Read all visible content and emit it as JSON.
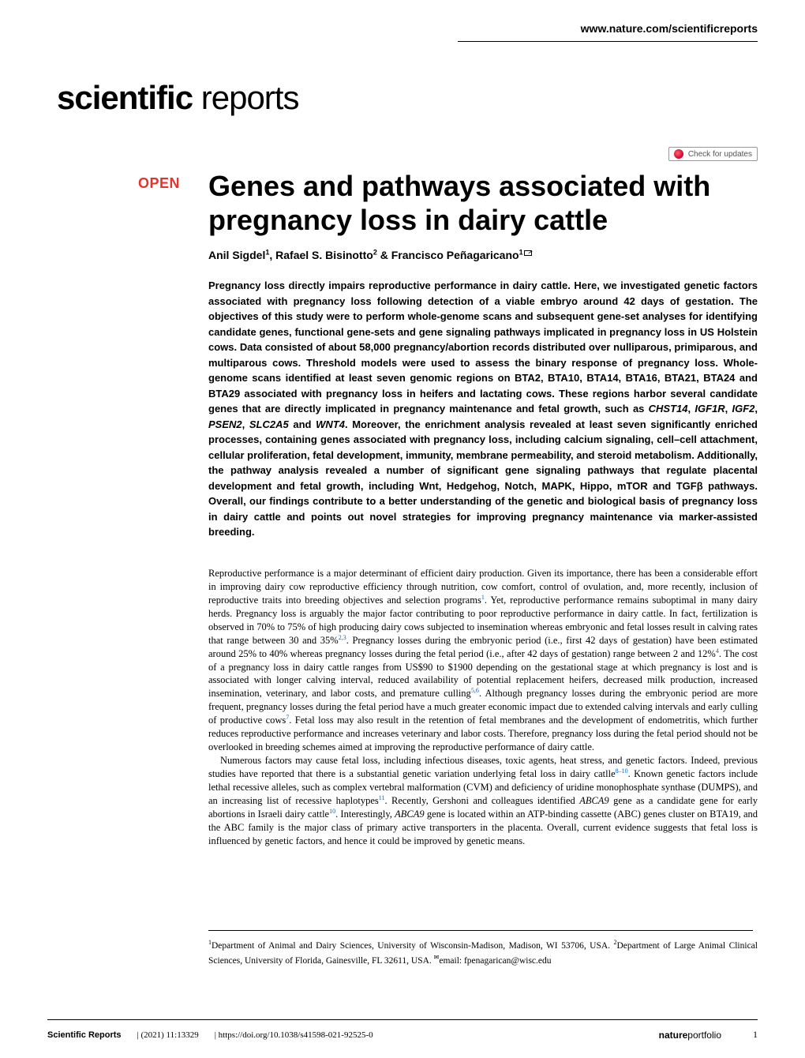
{
  "header": {
    "url": "www.nature.com/scientificreports"
  },
  "journal": {
    "logo_bold": "scientific",
    "logo_light": " reports"
  },
  "check_updates_label": "Check for updates",
  "open_badge": "OPEN",
  "article": {
    "title": "Genes and pathways associated with pregnancy loss in dairy cattle",
    "authors_html": "Anil Sigdel<sup>1</sup>, Rafael S. Bisinotto<sup>2</sup> & Francisco Peñagaricano<sup>1</sup>",
    "abstract": "Pregnancy loss directly impairs reproductive performance in dairy cattle. Here, we investigated genetic factors associated with pregnancy loss following detection of a viable embryo around 42 days of gestation. The objectives of this study were to perform whole-genome scans and subsequent gene-set analyses for identifying candidate genes, functional gene-sets and gene signaling pathways implicated in pregnancy loss in US Holstein cows. Data consisted of about 58,000 pregnancy/abortion records distributed over nulliparous, primiparous, and multiparous cows. Threshold models were used to assess the binary response of pregnancy loss. Whole-genome scans identified at least seven genomic regions on BTA2, BTA10, BTA14, BTA16, BTA21, BTA24 and BTA29 associated with pregnancy loss in heifers and lactating cows. These regions harbor several candidate genes that are directly implicated in pregnancy maintenance and fetal growth, such as <span class=\"gene\">CHST14</span>, <span class=\"gene\">IGF1R</span>, <span class=\"gene\">IGF2</span>, <span class=\"gene\">PSEN2</span>, <span class=\"gene\">SLC2A5</span> and <span class=\"gene\">WNT4</span>. Moreover, the enrichment analysis revealed at least seven significantly enriched processes, containing genes associated with pregnancy loss, including calcium signaling, cell–cell attachment, cellular proliferation, fetal development, immunity, membrane permeability, and steroid metabolism. Additionally, the pathway analysis revealed a number of significant gene signaling pathways that regulate placental development and fetal growth, including Wnt, Hedgehog, Notch, MAPK, Hippo, mTOR and TGFβ pathways. Overall, our findings contribute to a better understanding of the genetic and biological basis of pregnancy loss in dairy cattle and points out novel strategies for improving pregnancy maintenance via marker-assisted breeding.",
    "body_p1": "Reproductive performance is a major determinant of efficient dairy production. Given its importance, there has been a considerable effort in improving dairy cow reproductive efficiency through nutrition, cow comfort, control of ovulation, and, more recently, inclusion of reproductive traits into breeding objectives and selection programs<sup class=\"ref\">1</sup>. Yet, reproductive performance remains suboptimal in many dairy herds. Pregnancy loss is arguably the major factor contributing to poor reproductive performance in dairy cattle. In fact, fertilization is observed in 70% to 75% of high producing dairy cows subjected to insemination whereas embryonic and fetal losses result in calving rates that range between 30 and 35%<sup class=\"ref\">2,3</sup>. Pregnancy losses during the embryonic period (i.e., first 42 days of gestation) have been estimated around 25% to 40% whereas pregnancy losses during the fetal period (i.e., after 42 days of gestation) range between 2 and 12%<sup class=\"ref\">4</sup>. The cost of a pregnancy loss in dairy cattle ranges from US$90 to $1900 depending on the gestational stage at which pregnancy is lost and is associated with longer calving interval, reduced availability of potential replacement heifers, decreased milk production, increased insemination, veterinary, and labor costs, and premature culling<sup class=\"ref\">5,6</sup>. Although pregnancy losses during the embryonic period are more frequent, pregnancy losses during the fetal period have a much greater economic impact due to extended calving intervals and early culling of productive cows<sup class=\"ref\">7</sup>. Fetal loss may also result in the retention of fetal membranes and the development of endometritis, which further reduces reproductive performance and increases veterinary and labor costs. Therefore, pregnancy loss during the fetal period should not be overlooked in breeding schemes aimed at improving the reproductive performance of dairy cattle.",
    "body_p2": "Numerous factors may cause fetal loss, including infectious diseases, toxic agents, heat stress, and genetic factors. Indeed, previous studies have reported that there is a substantial genetic variation underlying fetal loss in dairy catlle<sup class=\"ref\">8–10</sup>. Known genetic factors include lethal recessive alleles, such as complex vertebral malformation (CVM) and deficiency of uridine monophosphate synthase (DUMPS), and an increasing list of recessive haplotypes<sup class=\"ref\">11</sup>. Recently, Gershoni and colleagues identified <span class=\"gene\">ABCA9</span> gene as a candidate gene for early abortions in Israeli dairy cattle<sup class=\"ref\">10</sup>. Interestingly, <span class=\"gene\">ABCA9</span> gene is located within an ATP-binding cassette (ABC) genes cluster on BTA19, and the ABC family is the major class of primary active transporters in the placenta. Overall, current evidence suggests that fetal loss is influenced by genetic factors, and hence it could be improved by genetic means.",
    "affiliations": "<sup>1</sup>Department of Animal and Dairy Sciences, University of Wisconsin-Madison, Madison, WI 53706, USA. <sup>2</sup>Department of Large Animal Clinical Sciences, University of Florida, Gainesville, FL 32611, USA. <sup>✉</sup>email: fpenagarican@wisc.edu"
  },
  "footer": {
    "journal": "Scientific Reports",
    "citation": "(2021) 11:13329",
    "doi": "https://doi.org/10.1038/s41598-021-92525-0",
    "portfolio_bold": "nature",
    "portfolio_light": "portfolio",
    "page": "1"
  },
  "colors": {
    "accent_red": "#e63329",
    "ref_blue": "#0066cc",
    "text": "#000000",
    "background": "#ffffff"
  }
}
